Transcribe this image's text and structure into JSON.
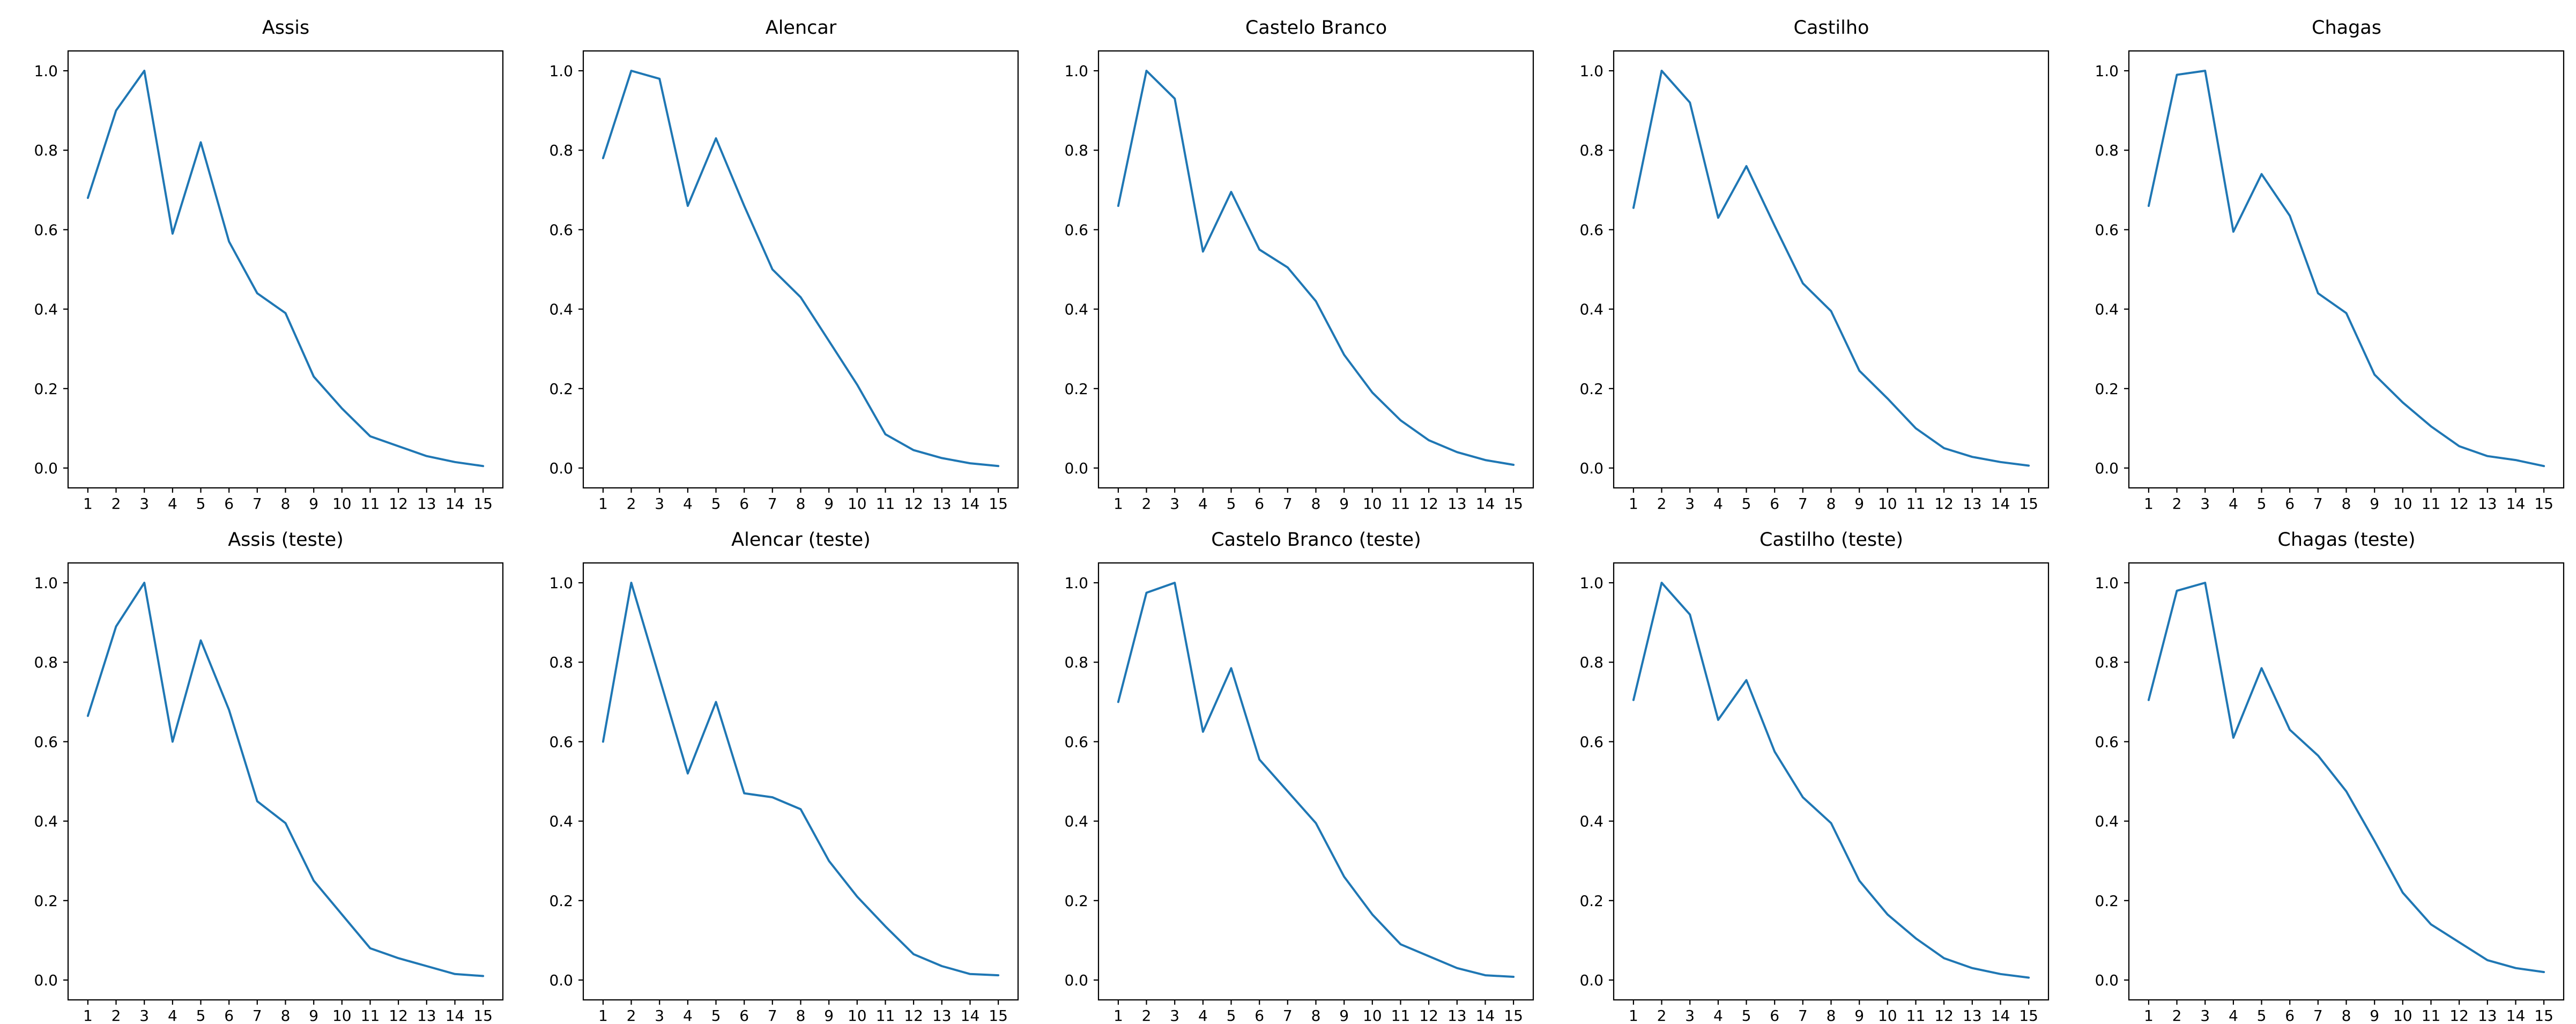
{
  "figure": {
    "background": "#ffffff",
    "rows": 2,
    "cols": 5
  },
  "style": {
    "line_color": "#1f77b4",
    "spine_color": "#000000",
    "tick_label_color": "#000000",
    "title_color": "#000000"
  },
  "axis": {
    "x_ticks": [
      1,
      2,
      3,
      4,
      5,
      6,
      7,
      8,
      9,
      10,
      11,
      12,
      13,
      14,
      15
    ],
    "x_tick_labels": [
      "1",
      "2",
      "3",
      "4",
      "5",
      "6",
      "7",
      "8",
      "9",
      "10",
      "11",
      "12",
      "13",
      "14",
      "15"
    ],
    "y_ticks": [
      0.0,
      0.2,
      0.4,
      0.6,
      0.8,
      1.0
    ],
    "y_tick_labels": [
      "0.0",
      "0.2",
      "0.4",
      "0.6",
      "0.8",
      "1.0"
    ],
    "xlim": [
      0.3,
      15.7
    ],
    "ylim": [
      -0.05,
      1.05
    ],
    "grid": false,
    "legend": "none"
  },
  "chart_data": [
    {
      "type": "line",
      "title": "Assis",
      "xlabel": "",
      "ylabel": "",
      "x": [
        1,
        2,
        3,
        4,
        5,
        6,
        7,
        8,
        9,
        10,
        11,
        12,
        13,
        14,
        15
      ],
      "values": [
        0.68,
        0.9,
        1.0,
        0.59,
        0.82,
        0.57,
        0.44,
        0.39,
        0.23,
        0.15,
        0.08,
        0.055,
        0.03,
        0.015,
        0.005
      ]
    },
    {
      "type": "line",
      "title": "Alencar",
      "xlabel": "",
      "ylabel": "",
      "x": [
        1,
        2,
        3,
        4,
        5,
        6,
        7,
        8,
        9,
        10,
        11,
        12,
        13,
        14,
        15
      ],
      "values": [
        0.78,
        1.0,
        0.98,
        0.66,
        0.83,
        0.66,
        0.5,
        0.43,
        0.32,
        0.21,
        0.085,
        0.045,
        0.025,
        0.012,
        0.005
      ]
    },
    {
      "type": "line",
      "title": "Castelo Branco",
      "xlabel": "",
      "ylabel": "",
      "x": [
        1,
        2,
        3,
        4,
        5,
        6,
        7,
        8,
        9,
        10,
        11,
        12,
        13,
        14,
        15
      ],
      "values": [
        0.66,
        1.0,
        0.93,
        0.545,
        0.695,
        0.55,
        0.505,
        0.42,
        0.285,
        0.19,
        0.12,
        0.07,
        0.04,
        0.02,
        0.008
      ]
    },
    {
      "type": "line",
      "title": "Castilho",
      "xlabel": "",
      "ylabel": "",
      "x": [
        1,
        2,
        3,
        4,
        5,
        6,
        7,
        8,
        9,
        10,
        11,
        12,
        13,
        14,
        15
      ],
      "values": [
        0.655,
        1.0,
        0.92,
        0.63,
        0.76,
        0.61,
        0.465,
        0.395,
        0.245,
        0.175,
        0.1,
        0.05,
        0.028,
        0.015,
        0.006
      ]
    },
    {
      "type": "line",
      "title": "Chagas",
      "xlabel": "",
      "ylabel": "",
      "x": [
        1,
        2,
        3,
        4,
        5,
        6,
        7,
        8,
        9,
        10,
        11,
        12,
        13,
        14,
        15
      ],
      "values": [
        0.66,
        0.99,
        1.0,
        0.595,
        0.74,
        0.635,
        0.44,
        0.39,
        0.235,
        0.165,
        0.105,
        0.055,
        0.03,
        0.02,
        0.005
      ]
    },
    {
      "type": "line",
      "title": "Assis (teste)",
      "xlabel": "",
      "ylabel": "",
      "x": [
        1,
        2,
        3,
        4,
        5,
        6,
        7,
        8,
        9,
        10,
        11,
        12,
        13,
        14,
        15
      ],
      "values": [
        0.665,
        0.89,
        1.0,
        0.6,
        0.855,
        0.68,
        0.45,
        0.395,
        0.25,
        0.165,
        0.08,
        0.055,
        0.035,
        0.015,
        0.01
      ]
    },
    {
      "type": "line",
      "title": "Alencar (teste)",
      "xlabel": "",
      "ylabel": "",
      "x": [
        1,
        2,
        3,
        4,
        5,
        6,
        7,
        8,
        9,
        10,
        11,
        12,
        13,
        14,
        15
      ],
      "values": [
        0.6,
        1.0,
        0.76,
        0.52,
        0.7,
        0.47,
        0.46,
        0.43,
        0.3,
        0.21,
        0.135,
        0.065,
        0.035,
        0.015,
        0.012
      ]
    },
    {
      "type": "line",
      "title": "Castelo Branco (teste)",
      "xlabel": "",
      "ylabel": "",
      "x": [
        1,
        2,
        3,
        4,
        5,
        6,
        7,
        8,
        9,
        10,
        11,
        12,
        13,
        14,
        15
      ],
      "values": [
        0.7,
        0.975,
        1.0,
        0.625,
        0.785,
        0.555,
        0.475,
        0.395,
        0.26,
        0.165,
        0.09,
        0.06,
        0.03,
        0.012,
        0.008
      ]
    },
    {
      "type": "line",
      "title": "Castilho (teste)",
      "xlabel": "",
      "ylabel": "",
      "x": [
        1,
        2,
        3,
        4,
        5,
        6,
        7,
        8,
        9,
        10,
        11,
        12,
        13,
        14,
        15
      ],
      "values": [
        0.705,
        1.0,
        0.92,
        0.655,
        0.755,
        0.575,
        0.46,
        0.395,
        0.25,
        0.165,
        0.105,
        0.055,
        0.03,
        0.015,
        0.006
      ]
    },
    {
      "type": "line",
      "title": "Chagas (teste)",
      "xlabel": "",
      "ylabel": "",
      "x": [
        1,
        2,
        3,
        4,
        5,
        6,
        7,
        8,
        9,
        10,
        11,
        12,
        13,
        14,
        15
      ],
      "values": [
        0.705,
        0.98,
        1.0,
        0.61,
        0.785,
        0.63,
        0.565,
        0.475,
        0.35,
        0.22,
        0.14,
        0.095,
        0.05,
        0.03,
        0.02
      ]
    }
  ]
}
